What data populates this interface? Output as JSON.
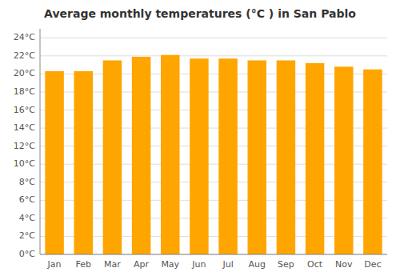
{
  "chart_data": {
    "type": "bar",
    "title": "Average monthly temperatures (°C ) in San Pablo",
    "categories": [
      "Jan",
      "Feb",
      "Mar",
      "Apr",
      "May",
      "Jun",
      "Jul",
      "Aug",
      "Sep",
      "Oct",
      "Nov",
      "Dec"
    ],
    "values": [
      20.3,
      20.3,
      21.5,
      21.9,
      22.1,
      21.7,
      21.7,
      21.5,
      21.5,
      21.2,
      20.8,
      20.5
    ],
    "color": "#FFA500",
    "ylim": [
      0,
      25
    ],
    "yticks": [
      {
        "value": 0,
        "label": "0°C"
      },
      {
        "value": 2,
        "label": "2°C"
      },
      {
        "value": 4,
        "label": "4°C"
      },
      {
        "value": 6,
        "label": "6°C"
      },
      {
        "value": 8,
        "label": "8°C"
      },
      {
        "value": 10,
        "label": "10°C"
      },
      {
        "value": 12,
        "label": "12°C"
      },
      {
        "value": 14,
        "label": "14°C"
      },
      {
        "value": 16,
        "label": "16°C"
      },
      {
        "value": 18,
        "label": "18°C"
      },
      {
        "value": 20,
        "label": "20°C"
      },
      {
        "value": 22,
        "label": "22°C"
      },
      {
        "value": 24,
        "label": "24°C"
      }
    ],
    "grid": true
  }
}
